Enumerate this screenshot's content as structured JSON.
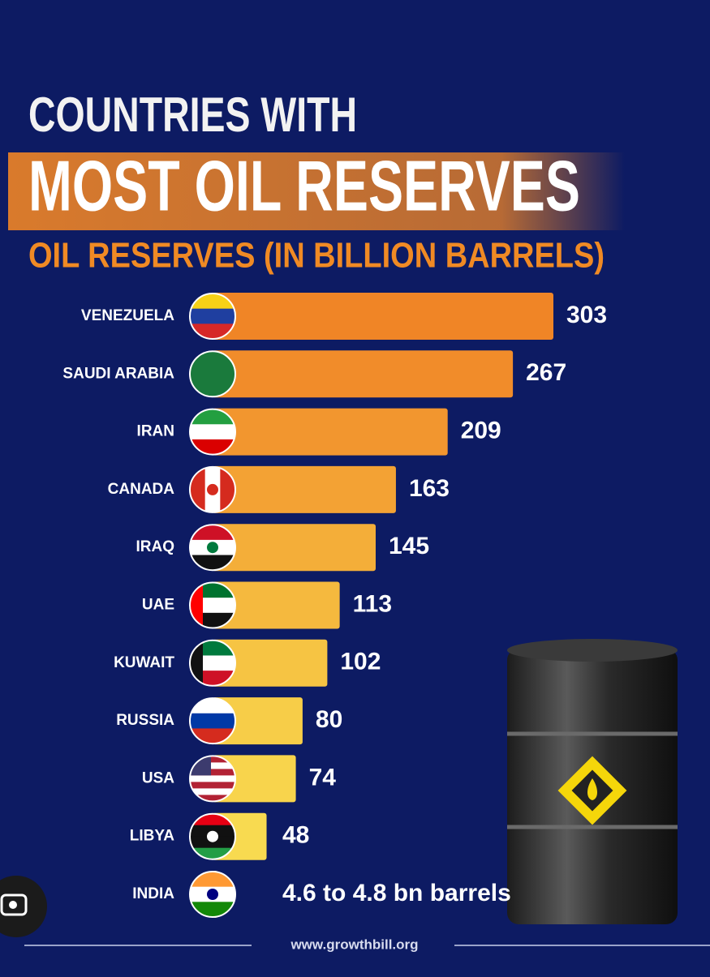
{
  "chart_data": {
    "type": "bar",
    "orientation": "horizontal",
    "title": "COUNTRIES WITH",
    "title_line2": "MOST OIL RESERVES",
    "subtitle": "OIL RESERVES (IN BILLION BARRELS)",
    "categories": [
      "VENEZUELA",
      "SAUDI ARABIA",
      "IRAN",
      "CANADA",
      "IRAQ",
      "UAE",
      "KUWAIT",
      "RUSSIA",
      "USA",
      "LIBYA",
      "INDIA"
    ],
    "values": [
      303,
      267,
      209,
      163,
      145,
      113,
      102,
      80,
      74,
      48,
      4.7
    ],
    "value_labels": [
      null,
      null,
      null,
      null,
      null,
      null,
      null,
      null,
      null,
      null,
      "4.6 to 4.8 bn barrels"
    ],
    "colors": [
      "#f08526",
      "#f18c2a",
      "#f2962f",
      "#f3a234",
      "#f4ae39",
      "#f5b93e",
      "#f6c443",
      "#f7cd48",
      "#f8d44c",
      "#f8da50",
      "#f9df54"
    ],
    "footer": "www.growthbill.org"
  }
}
